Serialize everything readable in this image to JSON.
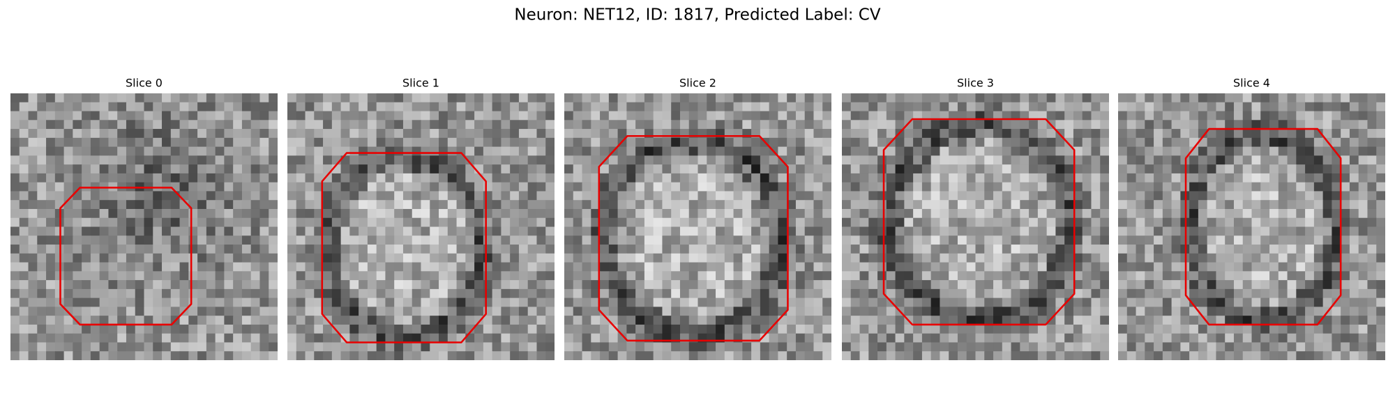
{
  "title": "Neuron: NET12, ID: 1817, Predicted Label: CV",
  "panels": [
    {
      "title": "Slice 0"
    },
    {
      "title": "Slice 1"
    },
    {
      "title": "Slice 2"
    },
    {
      "title": "Slice 3"
    },
    {
      "title": "Slice 4"
    }
  ]
}
